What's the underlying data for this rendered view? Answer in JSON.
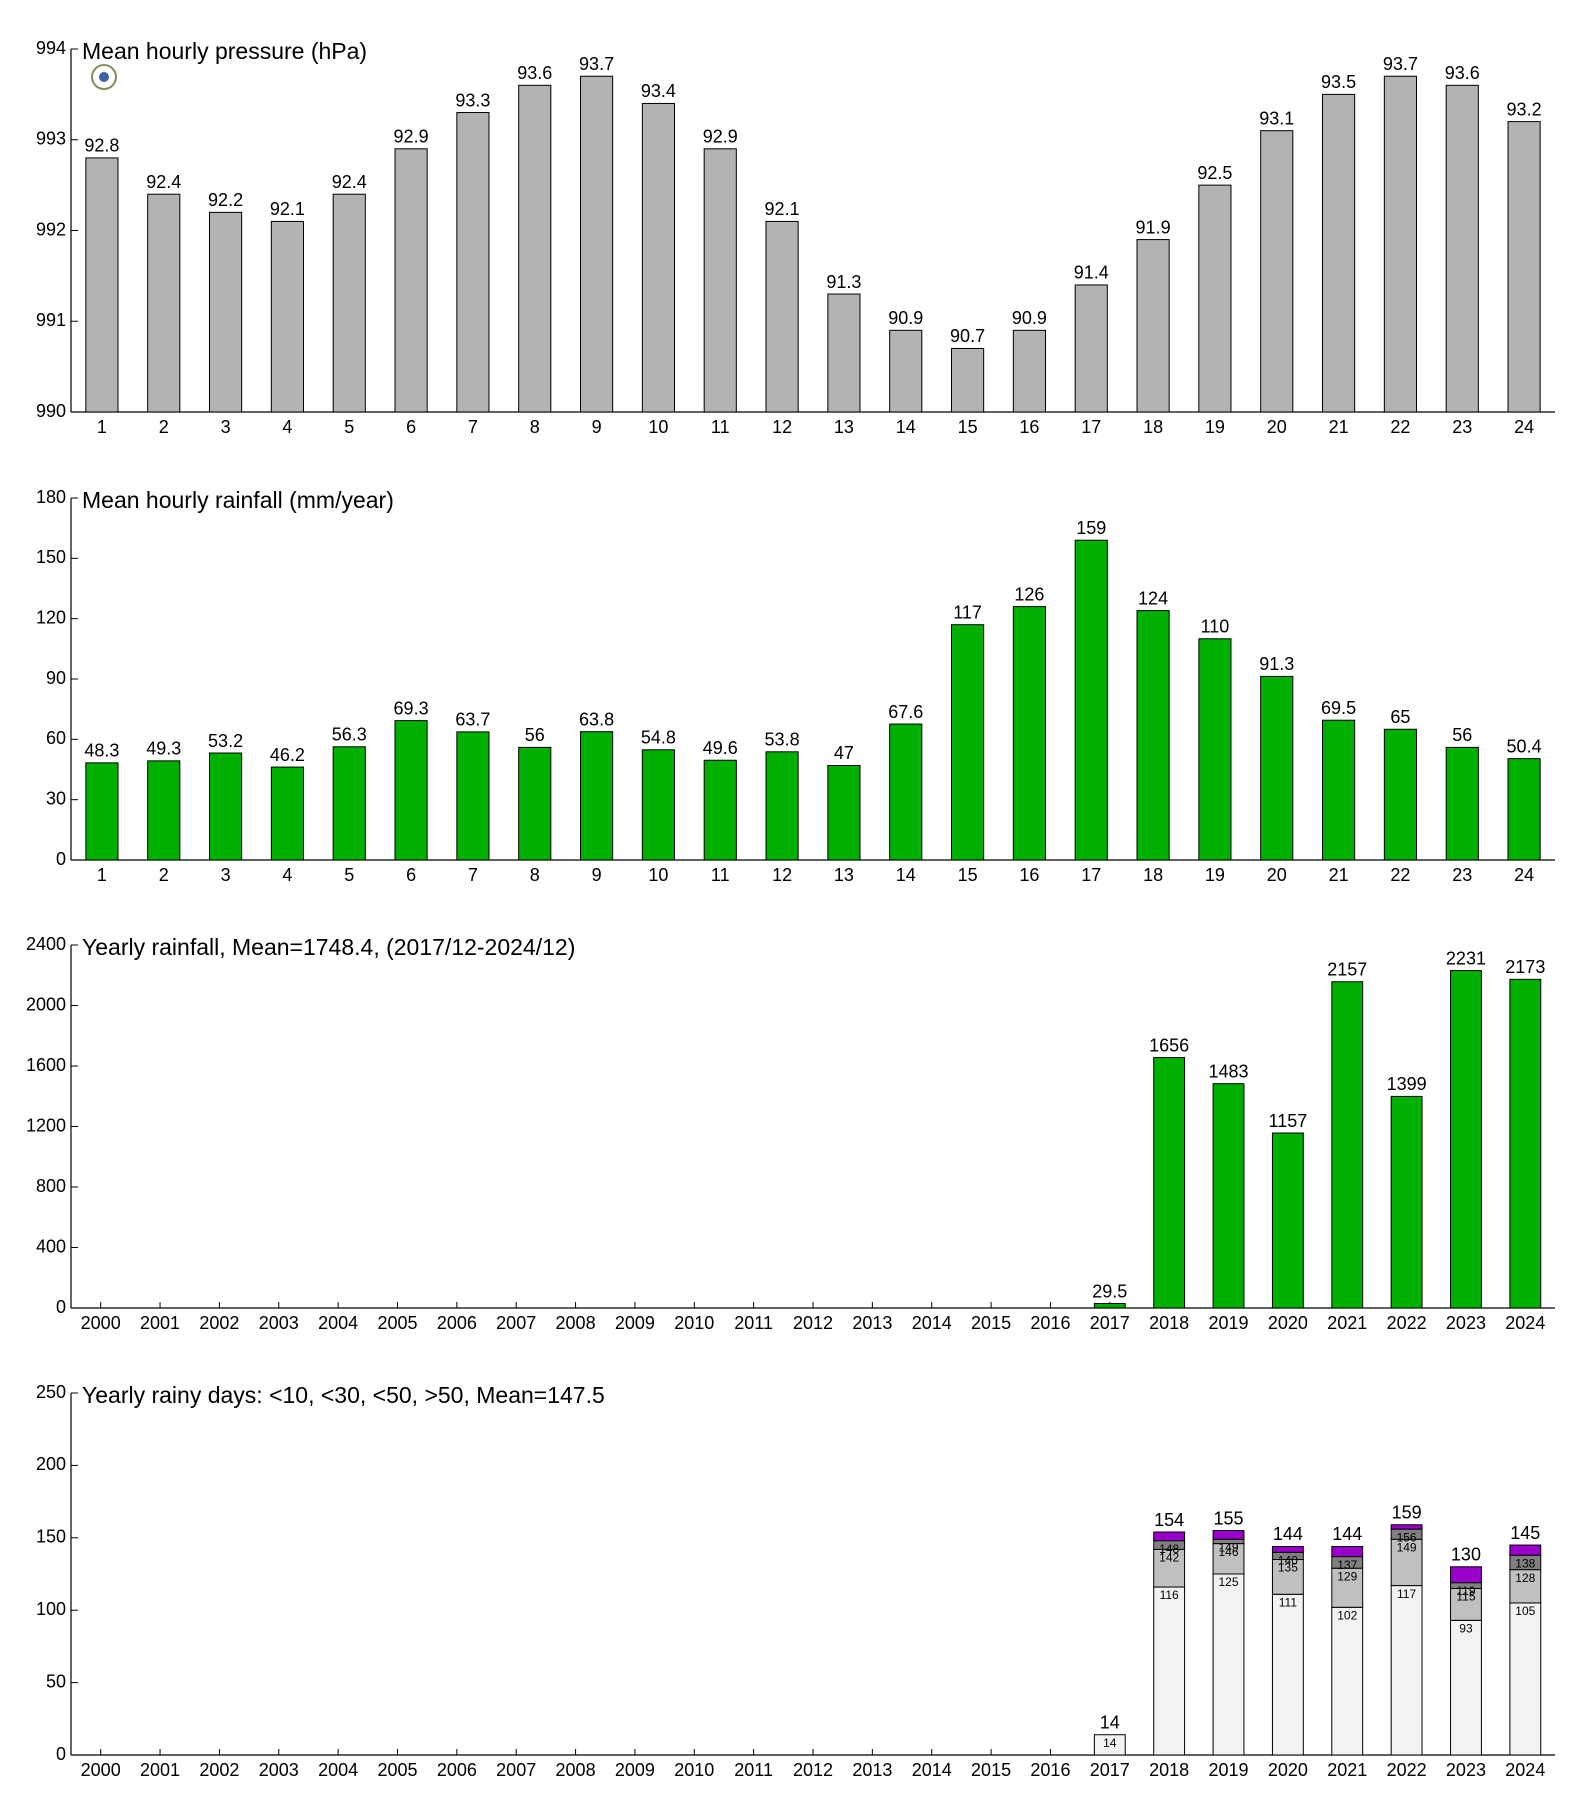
{
  "chart_data": [
    {
      "type": "bar",
      "title": "Mean hourly pressure (hPa)",
      "categories": [
        "1",
        "2",
        "3",
        "4",
        "5",
        "6",
        "7",
        "8",
        "9",
        "10",
        "11",
        "12",
        "13",
        "14",
        "15",
        "16",
        "17",
        "18",
        "19",
        "20",
        "21",
        "22",
        "23",
        "24"
      ],
      "values": [
        992.8,
        992.4,
        992.2,
        992.1,
        992.4,
        992.9,
        993.3,
        993.6,
        993.7,
        993.4,
        992.9,
        992.1,
        991.3,
        990.9,
        990.7,
        990.9,
        991.4,
        991.9,
        992.5,
        993.1,
        993.5,
        993.7,
        993.6,
        993.2
      ],
      "value_labels": [
        "92.8",
        "92.4",
        "92.2",
        "92.1",
        "92.4",
        "92.9",
        "93.3",
        "93.6",
        "93.7",
        "93.4",
        "92.9",
        "92.1",
        "91.3",
        "90.9",
        "90.7",
        "90.9",
        "91.4",
        "91.9",
        "92.5",
        "93.1",
        "93.5",
        "93.7",
        "93.6",
        "93.2"
      ],
      "color": "#b3b3b3",
      "ylim": [
        990,
        994
      ],
      "yticks": [
        990,
        991,
        992,
        993,
        994
      ]
    },
    {
      "type": "bar",
      "title": "Mean hourly rainfall (mm/year)",
      "categories": [
        "1",
        "2",
        "3",
        "4",
        "5",
        "6",
        "7",
        "8",
        "9",
        "10",
        "11",
        "12",
        "13",
        "14",
        "15",
        "16",
        "17",
        "18",
        "19",
        "20",
        "21",
        "22",
        "23",
        "24"
      ],
      "values": [
        48.3,
        49.3,
        53.2,
        46.2,
        56.3,
        69.3,
        63.7,
        56,
        63.8,
        54.8,
        49.6,
        53.8,
        47,
        67.6,
        117,
        126,
        159,
        124,
        110,
        91.3,
        69.5,
        65,
        56,
        50.4
      ],
      "color": "#00b000",
      "ylim": [
        0,
        180
      ],
      "yticks": [
        0,
        30,
        60,
        90,
        120,
        150,
        180
      ]
    },
    {
      "type": "bar",
      "title": "Yearly rainfall, Mean=1748.4, (2017/12-2024/12)",
      "categories": [
        "2000",
        "2001",
        "2002",
        "2003",
        "2004",
        "2005",
        "2006",
        "2007",
        "2008",
        "2009",
        "2010",
        "2011",
        "2012",
        "2013",
        "2014",
        "2015",
        "2016",
        "2017",
        "2018",
        "2019",
        "2020",
        "2021",
        "2022",
        "2023",
        "2024"
      ],
      "values": [
        null,
        null,
        null,
        null,
        null,
        null,
        null,
        null,
        null,
        null,
        null,
        null,
        null,
        null,
        null,
        null,
        null,
        29.5,
        1656,
        1483,
        1157,
        2157,
        1399,
        2231,
        2173
      ],
      "color": "#00b000",
      "ylim": [
        0,
        2400
      ],
      "yticks": [
        0,
        400,
        800,
        1200,
        1600,
        2000,
        2400
      ]
    },
    {
      "type": "stacked_bar",
      "title": "Yearly rainy days: <10, <30, <50, >50, Mean=147.5",
      "categories": [
        "2000",
        "2001",
        "2002",
        "2003",
        "2004",
        "2005",
        "2006",
        "2007",
        "2008",
        "2009",
        "2010",
        "2011",
        "2012",
        "2013",
        "2014",
        "2015",
        "2016",
        "2017",
        "2018",
        "2019",
        "2020",
        "2021",
        "2022",
        "2023",
        "2024"
      ],
      "series": [
        {
          "color": "#f2f2f2",
          "values": [
            null,
            null,
            null,
            null,
            null,
            null,
            null,
            null,
            null,
            null,
            null,
            null,
            null,
            null,
            null,
            null,
            null,
            14,
            116,
            125,
            111,
            102,
            117,
            93,
            105
          ]
        },
        {
          "color": "#c0c0c0",
          "values": [
            null,
            null,
            null,
            null,
            null,
            null,
            null,
            null,
            null,
            null,
            null,
            null,
            null,
            null,
            null,
            null,
            null,
            0,
            26,
            21,
            24,
            27,
            32,
            22,
            23
          ],
          "labels": [
            null,
            null,
            null,
            null,
            null,
            null,
            null,
            null,
            null,
            null,
            null,
            null,
            null,
            null,
            null,
            null,
            null,
            null,
            "142",
            "146",
            "135",
            "129",
            "149",
            "115",
            "128"
          ]
        },
        {
          "color": "#808080",
          "values": [
            null,
            null,
            null,
            null,
            null,
            null,
            null,
            null,
            null,
            null,
            null,
            null,
            null,
            null,
            null,
            null,
            null,
            0,
            6,
            3,
            5,
            8,
            7,
            4,
            10
          ],
          "labels": [
            null,
            null,
            null,
            null,
            null,
            null,
            null,
            null,
            null,
            null,
            null,
            null,
            null,
            null,
            null,
            null,
            null,
            null,
            "148",
            "149",
            "140",
            "137",
            "156",
            "119",
            "138"
          ]
        },
        {
          "color": "#9900cc",
          "values": [
            null,
            null,
            null,
            null,
            null,
            null,
            null,
            null,
            null,
            null,
            null,
            null,
            null,
            null,
            null,
            null,
            null,
            0,
            6,
            6,
            4,
            7,
            3,
            11,
            7
          ]
        }
      ],
      "totals": [
        null,
        null,
        null,
        null,
        null,
        null,
        null,
        null,
        null,
        null,
        null,
        null,
        null,
        null,
        null,
        null,
        null,
        14,
        154,
        155,
        144,
        144,
        159,
        130,
        145
      ],
      "ylim": [
        0,
        250
      ],
      "yticks": [
        0,
        50,
        100,
        150,
        200,
        250
      ]
    }
  ]
}
